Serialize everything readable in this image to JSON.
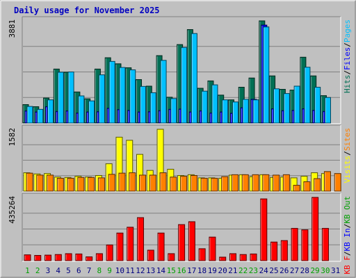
{
  "chart_data": {
    "type": "bar",
    "title": "Daily usage for November 2025",
    "x": [
      1,
      2,
      3,
      4,
      5,
      6,
      7,
      8,
      9,
      10,
      11,
      12,
      13,
      14,
      15,
      16,
      17,
      18,
      19,
      20,
      21,
      22,
      23,
      24,
      25,
      26,
      27,
      28,
      29,
      30,
      31
    ],
    "weekend_days": [
      1,
      2,
      8,
      9,
      15,
      16,
      22,
      23,
      29,
      30
    ],
    "colors": {
      "hits": "#006f54",
      "files": "#0000ff",
      "pages": "#00c0ff",
      "visits": "#ffff00",
      "sites": "#ff8000",
      "kbin": "#0000ff",
      "kbout": "#00a000",
      "kbf": "#ff0000",
      "title": "#0000c0",
      "weekday_label": "#000080",
      "weekend_label": "#00a000"
    },
    "panels": [
      {
        "id": "hits-panel",
        "scale_label": "3881",
        "ymax": 3881,
        "legend": [
          {
            "text": "Hits",
            "color": "#006f54"
          },
          {
            "text": "/",
            "color": "#000000"
          },
          {
            "text": "Files",
            "color": "#0000ff"
          },
          {
            "text": "/",
            "color": "#000000"
          },
          {
            "text": "Pages",
            "color": "#00c0ff"
          }
        ],
        "series": [
          {
            "name": "Hits",
            "color": "#006f54",
            "values": [
              700,
              620,
              950,
              2050,
              1930,
              1180,
              920,
              2050,
              2480,
              2250,
              2100,
              1650,
              1400,
              2560,
              980,
              2980,
              3550,
              1320,
              1600,
              1060,
              880,
              1360,
              1710,
              3881,
              1790,
              1280,
              1250,
              2500,
              1790,
              1040,
              0
            ]
          },
          {
            "name": "Files",
            "color": "#0000ff",
            "values": [
              460,
              420,
              620,
              440,
              460,
              380,
              420,
              430,
              560,
              510,
              480,
              420,
              430,
              470,
              520,
              530,
              420,
              460,
              380,
              420,
              370,
              580,
              900,
              3720,
              540,
              470,
              480,
              540,
              480,
              440,
              0
            ]
          },
          {
            "name": "Pages",
            "color": "#00c0ff",
            "values": [
              630,
              520,
              880,
              1930,
              1940,
              1030,
              840,
              1830,
              2340,
              2110,
              2020,
              1390,
              1150,
              2380,
              930,
              2870,
              3400,
              1210,
              1450,
              880,
              800,
              900,
              880,
              3650,
              1300,
              1120,
              1400,
              2120,
              1360,
              970,
              0
            ]
          }
        ]
      },
      {
        "id": "visits-panel",
        "scale_label": "1582",
        "ymax": 1582,
        "legend": [
          {
            "text": "Visits",
            "color": "#ffff00"
          },
          {
            "text": "/",
            "color": "#000000"
          },
          {
            "text": "Sites",
            "color": "#ff8000"
          }
        ],
        "series": [
          {
            "name": "Visits",
            "color": "#ffff00",
            "values": [
              470,
              440,
              450,
              360,
              350,
              380,
              360,
              400,
              700,
              1380,
              1300,
              940,
              530,
              1582,
              560,
              400,
              420,
              340,
              340,
              330,
              410,
              420,
              370,
              420,
              350,
              360,
              340,
              380,
              470,
              450,
              0
            ]
          },
          {
            "name": "Sites",
            "color": "#ff8000",
            "values": [
              460,
              410,
              410,
              330,
              330,
              350,
              350,
              340,
              430,
              460,
              470,
              410,
              410,
              470,
              360,
              380,
              400,
              330,
              330,
              370,
              420,
              420,
              420,
              420,
              410,
              420,
              150,
              240,
              320,
              500,
              450
            ]
          }
        ]
      },
      {
        "id": "kbytes-panel",
        "scale_label": "435264",
        "ymax": 435264,
        "legend": [
          {
            "text": "KB F",
            "color": "#ff0000"
          },
          {
            "text": "/",
            "color": "#000000"
          },
          {
            "text": "KB In",
            "color": "#0000ff"
          },
          {
            "text": "/",
            "color": "#000000"
          },
          {
            "text": "KB Out",
            "color": "#00a000"
          }
        ],
        "series": [
          {
            "name": "KB F",
            "color": "#ff0000",
            "values": [
              40000,
              36000,
              38000,
              42000,
              48000,
              46000,
              26000,
              48000,
              108000,
              190000,
              230000,
              296000,
              72000,
              190000,
              48000,
              248000,
              268000,
              82000,
              162000,
              24000,
              48000,
              42000,
              46000,
              425000,
              128000,
              138000,
              222000,
              212000,
              435264,
              222000,
              0
            ]
          }
        ]
      }
    ]
  }
}
